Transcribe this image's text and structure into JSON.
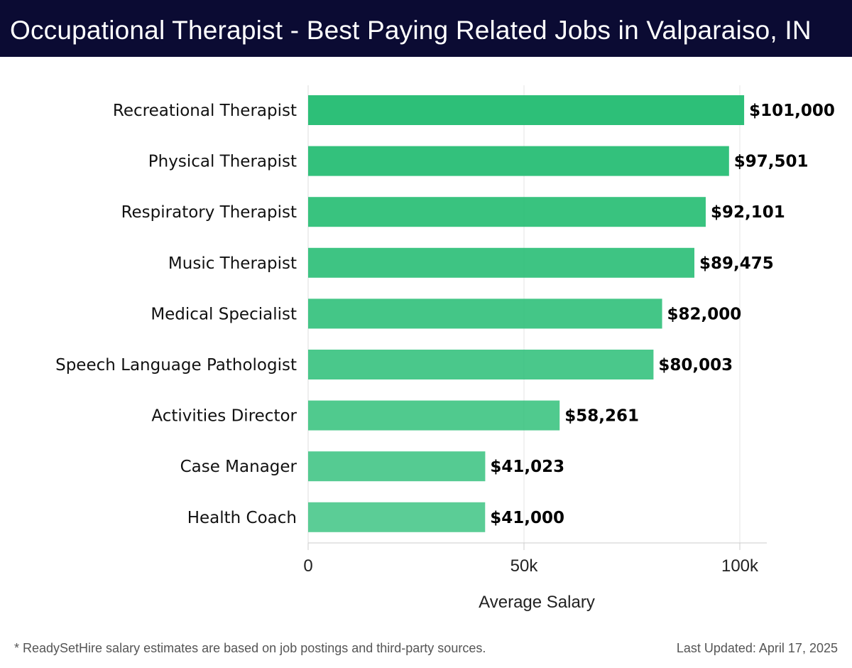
{
  "header": {
    "title": "Occupational Therapist - Best Paying Related Jobs in Valparaiso, IN"
  },
  "chart_data": {
    "type": "bar",
    "orientation": "horizontal",
    "categories": [
      "Recreational Therapist",
      "Physical Therapist",
      "Respiratory Therapist",
      "Music Therapist",
      "Medical Specialist",
      "Speech Language Pathologist",
      "Activities Director",
      "Case Manager",
      "Health Coach"
    ],
    "values": [
      101000,
      97501,
      92101,
      89475,
      82000,
      80003,
      58261,
      41023,
      41000
    ],
    "value_labels": [
      "$101,000",
      "$97,501",
      "$92,101",
      "$89,475",
      "$82,000",
      "$80,003",
      "$58,261",
      "$41,023",
      "$41,000"
    ],
    "xlabel": "Average Salary",
    "ylabel": "",
    "xlim": [
      0,
      106000
    ],
    "xticks": [
      0,
      50000,
      100000
    ],
    "xtick_labels": [
      "0",
      "50k",
      "100k"
    ],
    "grid": true,
    "bar_color": "#2dbf78"
  },
  "footer": {
    "note": "* ReadySetHire salary estimates are based on job postings and third-party sources.",
    "updated": "Last Updated: April 17, 2025"
  }
}
